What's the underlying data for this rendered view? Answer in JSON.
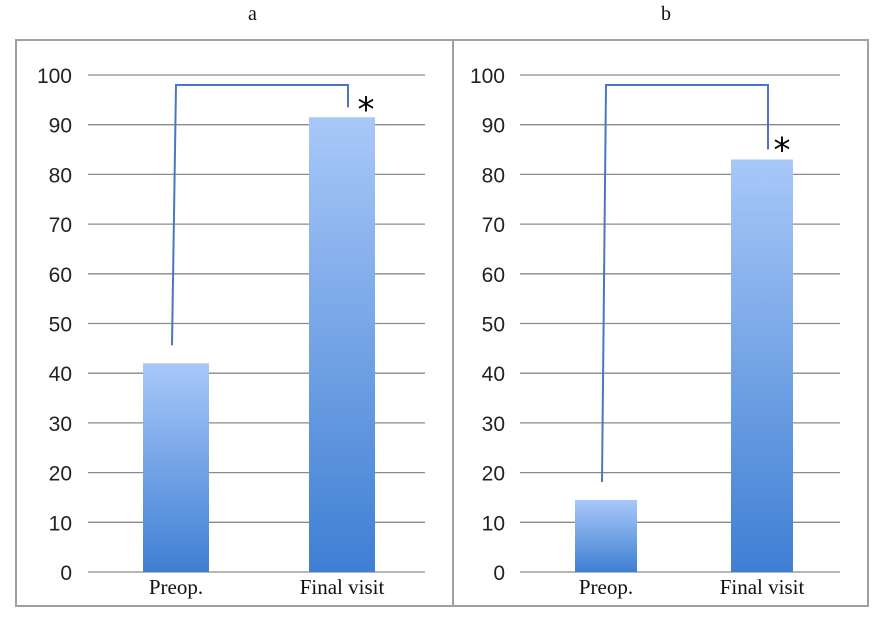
{
  "chart_data": [
    {
      "type": "bar",
      "panel_label": "a",
      "categories": [
        "Preop.",
        "Final visit"
      ],
      "values": [
        42,
        91.5
      ],
      "ylim": [
        0,
        100
      ],
      "yticks": [
        0,
        10,
        20,
        30,
        40,
        50,
        60,
        70,
        80,
        90,
        100
      ],
      "grid": true,
      "annotation": "*"
    },
    {
      "type": "bar",
      "panel_label": "b",
      "categories": [
        "Preop.",
        "Final visit"
      ],
      "values": [
        14.5,
        83
      ],
      "ylim": [
        0,
        100
      ],
      "yticks": [
        0,
        10,
        20,
        30,
        40,
        50,
        60,
        70,
        80,
        90,
        100
      ],
      "grid": true,
      "annotation": "*"
    }
  ],
  "colors": {
    "bar_top": "#a8c8f8",
    "bar_bottom": "#3f7fd3",
    "bracket": "#4a78c0",
    "grid": "#8a8a8a",
    "border": "#a0a0a0"
  }
}
